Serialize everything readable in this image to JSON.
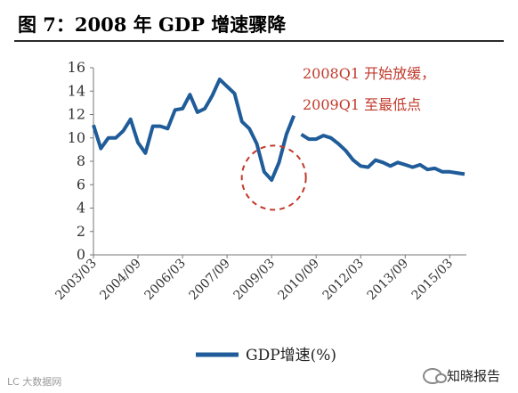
{
  "header": {
    "title": "图 7：2008 年 GDP 增速骤降"
  },
  "watermarks": {
    "left": "LC 大数据网",
    "right": "知晓报告"
  },
  "colors": {
    "line": "#1f5c99",
    "annotation": "#c0392b"
  },
  "chart_data": {
    "type": "line",
    "title": "",
    "xlabel": "",
    "ylabel": "",
    "ylim": [
      0,
      16
    ],
    "yticks": [
      0,
      2,
      4,
      6,
      8,
      10,
      12,
      14,
      16
    ],
    "grid": false,
    "legend_position": "bottom-center",
    "x_tick_labels": [
      "2003/03",
      "2004/09",
      "2006/03",
      "2007/09",
      "2009/03",
      "2010/09",
      "2012/03",
      "2013/09",
      "2015/03"
    ],
    "x_tick_positions": [
      0,
      6,
      12,
      18,
      24,
      30,
      36,
      42,
      48
    ],
    "series": [
      {
        "name": "GDP增速(%)",
        "color": "#1f5c99",
        "values": [
          11.1,
          9.1,
          10.0,
          10.0,
          10.6,
          11.6,
          9.6,
          8.7,
          11.0,
          11.0,
          10.8,
          12.4,
          12.5,
          13.7,
          12.2,
          12.5,
          13.6,
          15.0,
          14.4,
          13.8,
          11.4,
          10.8,
          9.5,
          7.1,
          6.4,
          7.9,
          10.3,
          11.9,
          10.3,
          9.9,
          9.9,
          10.2,
          10.0,
          9.5,
          8.9,
          8.1,
          7.6,
          7.5,
          8.1,
          7.9,
          7.6,
          7.9,
          7.7,
          7.5,
          7.7,
          7.3,
          7.4,
          7.1,
          7.1,
          7.0,
          6.9
        ]
      }
    ],
    "gap_after_index": 27,
    "annotations": [
      {
        "text": "2008Q1 开始放缓，",
        "line": 1
      },
      {
        "text": "2009Q1 至最低点",
        "line": 2
      }
    ],
    "highlight_circle": {
      "center_index": 24.3,
      "center_value": 6.6,
      "note": "dashed red circle around the trough"
    }
  }
}
